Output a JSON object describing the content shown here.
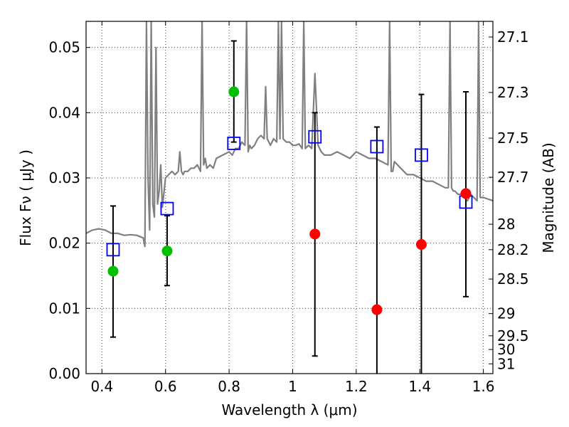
{
  "chart_data": {
    "type": "scatter",
    "xlabel": "Wavelength  λ (μm)",
    "ylabel": "Flux  Fν  ( μJy )",
    "ylabel_right": "Magnitude (AB)",
    "xlim": [
      0.35,
      1.63
    ],
    "ylim": [
      0.0,
      0.054
    ],
    "grid": true,
    "x_ticks": [
      0.4,
      0.6,
      0.8,
      1.0,
      1.2,
      1.4,
      1.6
    ],
    "x_tick_labels": [
      "0.4",
      "0.6",
      "0.8",
      "1",
      "1.2",
      "1.4",
      "1.6"
    ],
    "y_ticks": [
      0.0,
      0.01,
      0.02,
      0.03,
      0.04,
      0.05
    ],
    "y_tick_labels": [
      "0.00",
      "0.01",
      "0.02",
      "0.03",
      "0.04",
      "0.05"
    ],
    "right_ticks": [
      {
        "flux": 0.0516,
        "label": "27.1"
      },
      {
        "flux": 0.0431,
        "label": "27.3"
      },
      {
        "flux": 0.0361,
        "label": "27.5"
      },
      {
        "flux": 0.0301,
        "label": "27.7"
      },
      {
        "flux": 0.0229,
        "label": "28"
      },
      {
        "flux": 0.019,
        "label": "28.2"
      },
      {
        "flux": 0.0145,
        "label": "28.5"
      },
      {
        "flux": 0.0092,
        "label": "29"
      },
      {
        "flux": 0.0058,
        "label": "29.5"
      },
      {
        "flux": 0.0037,
        "label": "30"
      },
      {
        "flux": 0.0015,
        "label": "31"
      }
    ],
    "model_spectrum": {
      "color": "#808080",
      "x": [
        0.35,
        0.37,
        0.39,
        0.41,
        0.43,
        0.45,
        0.47,
        0.49,
        0.51,
        0.53,
        0.535,
        0.54,
        0.545,
        0.55,
        0.555,
        0.56,
        0.565,
        0.57,
        0.575,
        0.58,
        0.585,
        0.59,
        0.6,
        0.61,
        0.62,
        0.63,
        0.64,
        0.645,
        0.65,
        0.655,
        0.66,
        0.67,
        0.68,
        0.69,
        0.7,
        0.71,
        0.715,
        0.72,
        0.725,
        0.73,
        0.74,
        0.75,
        0.76,
        0.78,
        0.8,
        0.81,
        0.82,
        0.83,
        0.84,
        0.85,
        0.855,
        0.86,
        0.865,
        0.87,
        0.88,
        0.89,
        0.9,
        0.91,
        0.915,
        0.92,
        0.925,
        0.93,
        0.94,
        0.95,
        0.955,
        0.96,
        0.965,
        0.97,
        0.98,
        0.99,
        1.0,
        1.01,
        1.02,
        1.03,
        1.035,
        1.04,
        1.05,
        1.06,
        1.07,
        1.08,
        1.09,
        1.1,
        1.12,
        1.14,
        1.16,
        1.18,
        1.2,
        1.22,
        1.24,
        1.26,
        1.28,
        1.3,
        1.305,
        1.31,
        1.315,
        1.32,
        1.34,
        1.36,
        1.38,
        1.4,
        1.42,
        1.44,
        1.46,
        1.48,
        1.49,
        1.495,
        1.5,
        1.505,
        1.51,
        1.52,
        1.53,
        1.54,
        1.55,
        1.56,
        1.57,
        1.58,
        1.585,
        1.59,
        1.6,
        1.63
      ],
      "y": [
        0.0215,
        0.022,
        0.0222,
        0.022,
        0.0215,
        0.0215,
        0.0212,
        0.0213,
        0.0212,
        0.0208,
        0.0195,
        0.054,
        0.03,
        0.022,
        0.054,
        0.026,
        0.024,
        0.05,
        0.026,
        0.028,
        0.032,
        0.0255,
        0.03,
        0.0305,
        0.031,
        0.0305,
        0.031,
        0.034,
        0.031,
        0.0305,
        0.031,
        0.031,
        0.0315,
        0.0315,
        0.032,
        0.031,
        0.054,
        0.032,
        0.033,
        0.0315,
        0.032,
        0.0315,
        0.033,
        0.0335,
        0.034,
        0.0335,
        0.0345,
        0.0345,
        0.0355,
        0.035,
        0.054,
        0.034,
        0.035,
        0.0345,
        0.035,
        0.036,
        0.0365,
        0.036,
        0.044,
        0.036,
        0.0355,
        0.035,
        0.036,
        0.0355,
        0.054,
        0.036,
        0.054,
        0.036,
        0.0355,
        0.0355,
        0.035,
        0.035,
        0.0352,
        0.0345,
        0.054,
        0.0345,
        0.035,
        0.0345,
        0.046,
        0.035,
        0.034,
        0.0335,
        0.0335,
        0.034,
        0.0335,
        0.033,
        0.034,
        0.0335,
        0.033,
        0.033,
        0.0325,
        0.032,
        0.054,
        0.031,
        0.031,
        0.0325,
        0.0315,
        0.0305,
        0.0305,
        0.03,
        0.0295,
        0.0295,
        0.029,
        0.0285,
        0.0285,
        0.054,
        0.0285,
        0.028,
        0.028,
        0.0275,
        0.0275,
        0.027,
        0.0265,
        0.0275,
        0.027,
        0.0265,
        0.054,
        0.027,
        0.027,
        0.0265
      ]
    },
    "model_photometry": {
      "color": "#0000ff",
      "x": [
        0.435,
        0.605,
        0.815,
        1.07,
        1.265,
        1.405,
        1.545
      ],
      "y": [
        0.019,
        0.0253,
        0.0353,
        0.0363,
        0.0348,
        0.0335,
        0.0263
      ]
    },
    "detections": {
      "color": "#00c000",
      "x": [
        0.435,
        0.605,
        0.815
      ],
      "y": [
        0.0157,
        0.0188,
        0.0432
      ],
      "err_low": [
        0.0056,
        0.0135,
        0.0355
      ],
      "err_high": [
        0.0257,
        0.0242,
        0.051
      ]
    },
    "upper_limits": {
      "color": "#ff0000",
      "x": [
        1.07,
        1.265,
        1.405,
        1.545
      ],
      "y": [
        0.0214,
        0.0098,
        0.0198,
        0.0276
      ],
      "err_low": [
        0.0027,
        0.0,
        0.0,
        0.0118
      ],
      "err_high": [
        0.04,
        0.0378,
        0.0428,
        0.0432
      ]
    }
  }
}
